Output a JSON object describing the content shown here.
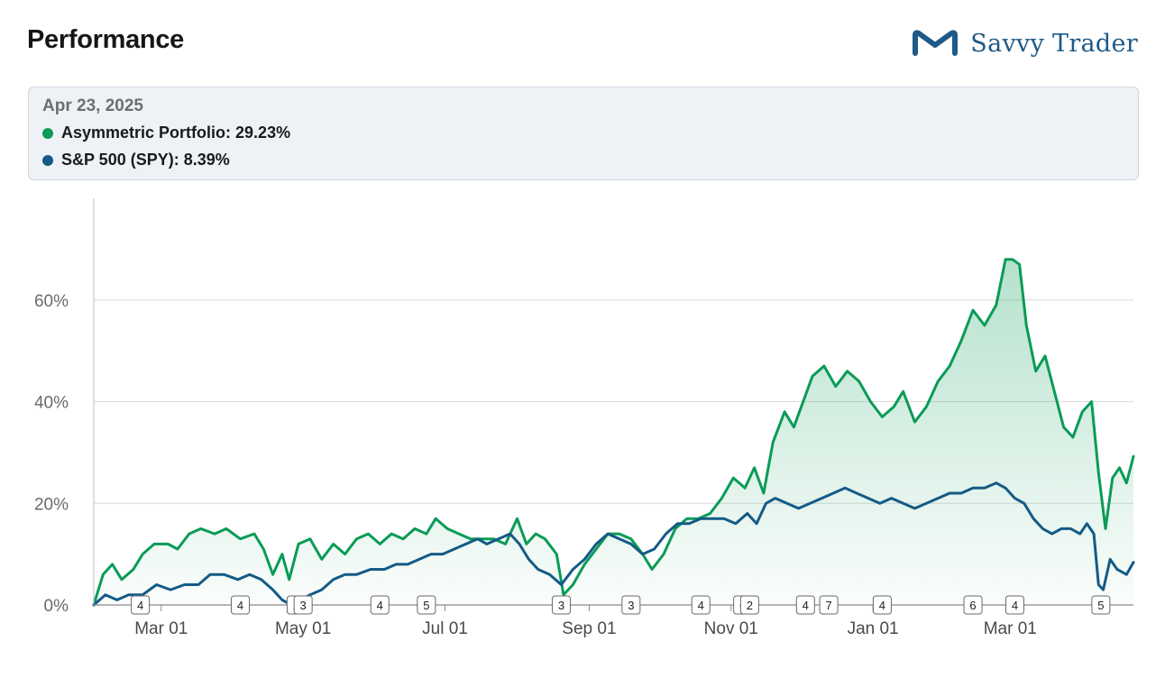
{
  "header": {
    "title": "Performance",
    "brand_name": "Savvy Trader"
  },
  "tooltip": {
    "date": "Apr 23, 2025",
    "rows": [
      {
        "label": "Asymmetric Portfolio: 29.23%",
        "color": "#0a9b56"
      },
      {
        "label": "S&P 500 (SPY): 8.39%",
        "color": "#145a86"
      }
    ]
  },
  "colors": {
    "portfolio": "#0a9b56",
    "benchmark": "#145a86",
    "grid": "#dcdcdc",
    "axis": "#555555"
  },
  "chart_data": {
    "type": "line",
    "x_start": "2024-02-01",
    "x_end": "2025-04-23",
    "ylim": [
      0,
      80
    ],
    "y_ticks": [
      0,
      20,
      40,
      60
    ],
    "y_tick_labels": [
      "0%",
      "20%",
      "40%",
      "60%"
    ],
    "x_ticks": [
      {
        "date": "2024-03-01",
        "label": "Mar 01"
      },
      {
        "date": "2024-05-01",
        "label": "May 01"
      },
      {
        "date": "2024-07-01",
        "label": "Jul 01"
      },
      {
        "date": "2024-09-01",
        "label": "Sep 01"
      },
      {
        "date": "2024-11-01",
        "label": "Nov 01"
      },
      {
        "date": "2025-01-01",
        "label": "Jan 01"
      },
      {
        "date": "2025-03-01",
        "label": "Mar 01"
      }
    ],
    "grid": true,
    "series": [
      {
        "name": "Asymmetric Portfolio",
        "color": "#0a9b56",
        "fill": true,
        "points": [
          [
            "2024-02-01",
            0
          ],
          [
            "2024-02-05",
            6
          ],
          [
            "2024-02-09",
            8
          ],
          [
            "2024-02-13",
            5
          ],
          [
            "2024-02-18",
            7
          ],
          [
            "2024-02-22",
            10
          ],
          [
            "2024-02-27",
            12
          ],
          [
            "2024-03-04",
            12
          ],
          [
            "2024-03-08",
            11
          ],
          [
            "2024-03-13",
            14
          ],
          [
            "2024-03-18",
            15
          ],
          [
            "2024-03-24",
            14
          ],
          [
            "2024-03-29",
            15
          ],
          [
            "2024-04-04",
            13
          ],
          [
            "2024-04-10",
            14
          ],
          [
            "2024-04-14",
            11
          ],
          [
            "2024-04-18",
            6
          ],
          [
            "2024-04-22",
            10
          ],
          [
            "2024-04-25",
            5
          ],
          [
            "2024-04-29",
            12
          ],
          [
            "2024-05-04",
            13
          ],
          [
            "2024-05-09",
            9
          ],
          [
            "2024-05-14",
            12
          ],
          [
            "2024-05-19",
            10
          ],
          [
            "2024-05-24",
            13
          ],
          [
            "2024-05-29",
            14
          ],
          [
            "2024-06-03",
            12
          ],
          [
            "2024-06-08",
            14
          ],
          [
            "2024-06-13",
            13
          ],
          [
            "2024-06-18",
            15
          ],
          [
            "2024-06-23",
            14
          ],
          [
            "2024-06-27",
            17
          ],
          [
            "2024-07-02",
            15
          ],
          [
            "2024-07-07",
            14
          ],
          [
            "2024-07-12",
            13
          ],
          [
            "2024-07-17",
            13
          ],
          [
            "2024-07-22",
            13
          ],
          [
            "2024-07-27",
            12
          ],
          [
            "2024-08-01",
            17
          ],
          [
            "2024-08-05",
            12
          ],
          [
            "2024-08-09",
            14
          ],
          [
            "2024-08-13",
            13
          ],
          [
            "2024-08-18",
            10
          ],
          [
            "2024-08-21",
            2
          ],
          [
            "2024-08-25",
            4
          ],
          [
            "2024-08-30",
            8
          ],
          [
            "2024-09-04",
            11
          ],
          [
            "2024-09-09",
            14
          ],
          [
            "2024-09-14",
            14
          ],
          [
            "2024-09-19",
            13
          ],
          [
            "2024-09-24",
            10
          ],
          [
            "2024-09-28",
            7
          ],
          [
            "2024-10-03",
            10
          ],
          [
            "2024-10-08",
            15
          ],
          [
            "2024-10-13",
            17
          ],
          [
            "2024-10-18",
            17
          ],
          [
            "2024-10-23",
            18
          ],
          [
            "2024-10-28",
            21
          ],
          [
            "2024-11-02",
            25
          ],
          [
            "2024-11-07",
            23
          ],
          [
            "2024-11-11",
            27
          ],
          [
            "2024-11-15",
            22
          ],
          [
            "2024-11-19",
            32
          ],
          [
            "2024-11-24",
            38
          ],
          [
            "2024-11-28",
            35
          ],
          [
            "2024-12-02",
            40
          ],
          [
            "2024-12-06",
            45
          ],
          [
            "2024-12-11",
            47
          ],
          [
            "2024-12-16",
            43
          ],
          [
            "2024-12-21",
            46
          ],
          [
            "2024-12-26",
            44
          ],
          [
            "2024-12-31",
            40
          ],
          [
            "2025-01-05",
            37
          ],
          [
            "2025-01-10",
            39
          ],
          [
            "2025-01-14",
            42
          ],
          [
            "2025-01-19",
            36
          ],
          [
            "2025-01-24",
            39
          ],
          [
            "2025-01-29",
            44
          ],
          [
            "2025-02-03",
            47
          ],
          [
            "2025-02-08",
            52
          ],
          [
            "2025-02-13",
            58
          ],
          [
            "2025-02-18",
            55
          ],
          [
            "2025-02-23",
            59
          ],
          [
            "2025-02-27",
            68
          ],
          [
            "2025-03-02",
            68
          ],
          [
            "2025-03-05",
            67
          ],
          [
            "2025-03-08",
            55
          ],
          [
            "2025-03-12",
            46
          ],
          [
            "2025-03-16",
            49
          ],
          [
            "2025-03-20",
            42
          ],
          [
            "2025-03-24",
            35
          ],
          [
            "2025-03-28",
            33
          ],
          [
            "2025-04-01",
            38
          ],
          [
            "2025-04-05",
            40
          ],
          [
            "2025-04-08",
            26
          ],
          [
            "2025-04-11",
            15
          ],
          [
            "2025-04-14",
            25
          ],
          [
            "2025-04-17",
            27
          ],
          [
            "2025-04-20",
            24
          ],
          [
            "2025-04-23",
            29.23
          ]
        ]
      },
      {
        "name": "S&P 500 (SPY)",
        "color": "#145a86",
        "fill": false,
        "points": [
          [
            "2024-02-01",
            0
          ],
          [
            "2024-02-06",
            2
          ],
          [
            "2024-02-11",
            1
          ],
          [
            "2024-02-16",
            2
          ],
          [
            "2024-02-22",
            2
          ],
          [
            "2024-02-28",
            4
          ],
          [
            "2024-03-05",
            3
          ],
          [
            "2024-03-11",
            4
          ],
          [
            "2024-03-17",
            4
          ],
          [
            "2024-03-22",
            6
          ],
          [
            "2024-03-28",
            6
          ],
          [
            "2024-04-03",
            5
          ],
          [
            "2024-04-08",
            6
          ],
          [
            "2024-04-13",
            5
          ],
          [
            "2024-04-18",
            3
          ],
          [
            "2024-04-22",
            1
          ],
          [
            "2024-04-26",
            0
          ],
          [
            "2024-04-30",
            1
          ],
          [
            "2024-05-04",
            2
          ],
          [
            "2024-05-09",
            3
          ],
          [
            "2024-05-14",
            5
          ],
          [
            "2024-05-19",
            6
          ],
          [
            "2024-05-24",
            6
          ],
          [
            "2024-05-30",
            7
          ],
          [
            "2024-06-05",
            7
          ],
          [
            "2024-06-10",
            8
          ],
          [
            "2024-06-15",
            8
          ],
          [
            "2024-06-20",
            9
          ],
          [
            "2024-06-25",
            10
          ],
          [
            "2024-06-30",
            10
          ],
          [
            "2024-07-05",
            11
          ],
          [
            "2024-07-10",
            12
          ],
          [
            "2024-07-15",
            13
          ],
          [
            "2024-07-19",
            12
          ],
          [
            "2024-07-24",
            13
          ],
          [
            "2024-07-29",
            14
          ],
          [
            "2024-08-02",
            12
          ],
          [
            "2024-08-06",
            9
          ],
          [
            "2024-08-10",
            7
          ],
          [
            "2024-08-15",
            6
          ],
          [
            "2024-08-20",
            4
          ],
          [
            "2024-08-25",
            7
          ],
          [
            "2024-08-30",
            9
          ],
          [
            "2024-09-04",
            12
          ],
          [
            "2024-09-09",
            14
          ],
          [
            "2024-09-14",
            13
          ],
          [
            "2024-09-19",
            12
          ],
          [
            "2024-09-24",
            10
          ],
          [
            "2024-09-29",
            11
          ],
          [
            "2024-10-04",
            14
          ],
          [
            "2024-10-09",
            16
          ],
          [
            "2024-10-14",
            16
          ],
          [
            "2024-10-19",
            17
          ],
          [
            "2024-10-24",
            17
          ],
          [
            "2024-10-29",
            17
          ],
          [
            "2024-11-03",
            16
          ],
          [
            "2024-11-08",
            18
          ],
          [
            "2024-11-12",
            16
          ],
          [
            "2024-11-16",
            20
          ],
          [
            "2024-11-20",
            21
          ],
          [
            "2024-11-25",
            20
          ],
          [
            "2024-11-30",
            19
          ],
          [
            "2024-12-05",
            20
          ],
          [
            "2024-12-10",
            21
          ],
          [
            "2024-12-15",
            22
          ],
          [
            "2024-12-20",
            23
          ],
          [
            "2024-12-25",
            22
          ],
          [
            "2024-12-30",
            21
          ],
          [
            "2025-01-04",
            20
          ],
          [
            "2025-01-09",
            21
          ],
          [
            "2025-01-14",
            20
          ],
          [
            "2025-01-19",
            19
          ],
          [
            "2025-01-24",
            20
          ],
          [
            "2025-01-29",
            21
          ],
          [
            "2025-02-03",
            22
          ],
          [
            "2025-02-08",
            22
          ],
          [
            "2025-02-13",
            23
          ],
          [
            "2025-02-18",
            23
          ],
          [
            "2025-02-23",
            24
          ],
          [
            "2025-02-27",
            23
          ],
          [
            "2025-03-03",
            21
          ],
          [
            "2025-03-07",
            20
          ],
          [
            "2025-03-11",
            17
          ],
          [
            "2025-03-15",
            15
          ],
          [
            "2025-03-19",
            14
          ],
          [
            "2025-03-23",
            15
          ],
          [
            "2025-03-27",
            15
          ],
          [
            "2025-03-31",
            14
          ],
          [
            "2025-04-03",
            16
          ],
          [
            "2025-04-06",
            14
          ],
          [
            "2025-04-08",
            4
          ],
          [
            "2025-04-10",
            3
          ],
          [
            "2025-04-13",
            9
          ],
          [
            "2025-04-16",
            7
          ],
          [
            "2025-04-20",
            6
          ],
          [
            "2025-04-23",
            8.39
          ]
        ]
      }
    ],
    "event_markers": [
      {
        "date": "2024-02-21",
        "label": "4"
      },
      {
        "date": "2024-04-04",
        "label": "4"
      },
      {
        "date": "2024-04-28",
        "label": "2"
      },
      {
        "date": "2024-05-01",
        "label": "3"
      },
      {
        "date": "2024-06-03",
        "label": "4"
      },
      {
        "date": "2024-06-23",
        "label": "5"
      },
      {
        "date": "2024-08-20",
        "label": "3"
      },
      {
        "date": "2024-09-19",
        "label": "3"
      },
      {
        "date": "2024-10-19",
        "label": "4"
      },
      {
        "date": "2024-11-06",
        "label": "6"
      },
      {
        "date": "2024-11-09",
        "label": "2"
      },
      {
        "date": "2024-12-03",
        "label": "4"
      },
      {
        "date": "2024-12-13",
        "label": "7"
      },
      {
        "date": "2025-01-05",
        "label": "4"
      },
      {
        "date": "2025-02-13",
        "label": "6"
      },
      {
        "date": "2025-03-03",
        "label": "4"
      },
      {
        "date": "2025-04-09",
        "label": "5"
      }
    ]
  }
}
